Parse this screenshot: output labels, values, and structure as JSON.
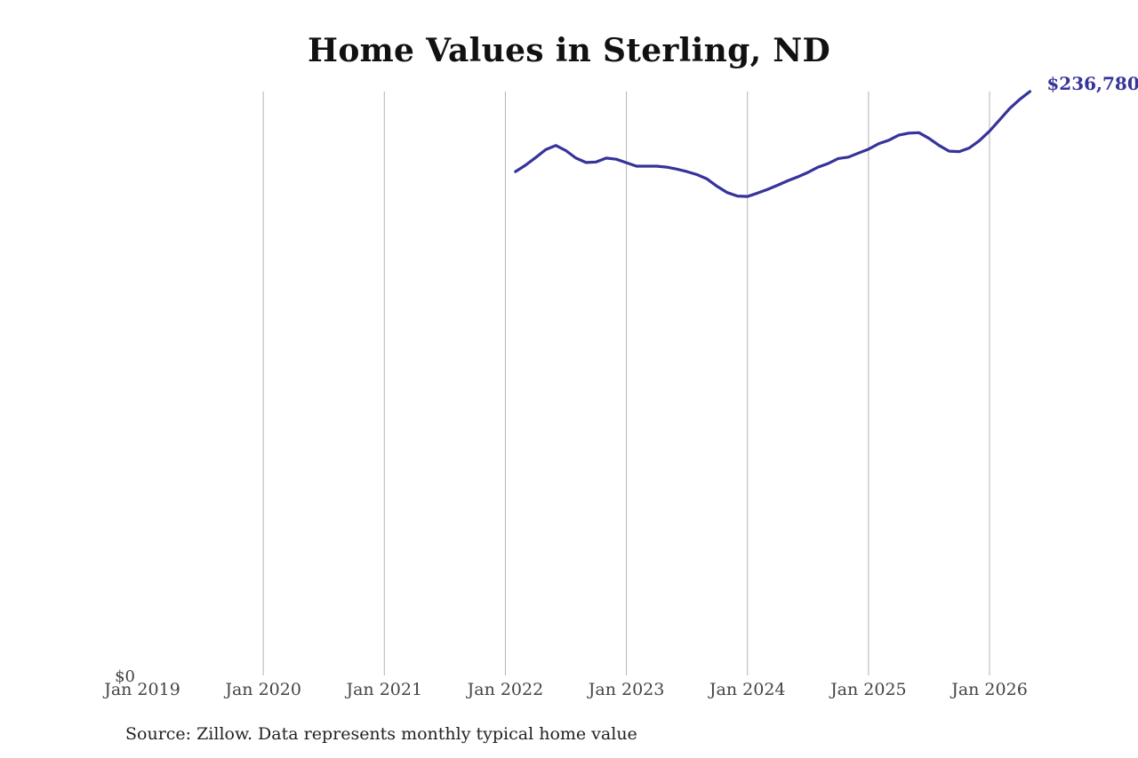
{
  "source_note": "Source: Zillow. Data represents monthly typical home value",
  "colors": {
    "line": "#36339a",
    "gridline": "#b4b4b4",
    "end_label": "#36339a"
  },
  "chart_data": {
    "type": "line",
    "title": "Home Values in Sterling, ND",
    "xlabel": "",
    "ylabel": "",
    "grid": "vertical",
    "legend": "none",
    "x_ticks": [
      {
        "date": "2019-01",
        "label": "Jan 2019"
      },
      {
        "date": "2020-01",
        "label": "Jan 2020"
      },
      {
        "date": "2021-01",
        "label": "Jan 2021"
      },
      {
        "date": "2022-01",
        "label": "Jan 2022"
      },
      {
        "date": "2023-01",
        "label": "Jan 2023"
      },
      {
        "date": "2024-01",
        "label": "Jan 2024"
      },
      {
        "date": "2025-01",
        "label": "Jan 2025"
      },
      {
        "date": "2026-01",
        "label": "Jan 2026"
      }
    ],
    "x_range": [
      "2019-01",
      "2026-01"
    ],
    "ylim": [
      0,
      236780
    ],
    "y_tick_labels": [
      "$0"
    ],
    "end_label": "$236,780",
    "series": [
      {
        "points": [
          [
            "2022-02",
            204300
          ],
          [
            "2022-03",
            206900
          ],
          [
            "2022-04",
            210000
          ],
          [
            "2022-05",
            213200
          ],
          [
            "2022-06",
            214900
          ],
          [
            "2022-07",
            212800
          ],
          [
            "2022-08",
            209800
          ],
          [
            "2022-09",
            208000
          ],
          [
            "2022-10",
            208200
          ],
          [
            "2022-11",
            209800
          ],
          [
            "2022-12",
            209300
          ],
          [
            "2023-01",
            207900
          ],
          [
            "2023-02",
            206500
          ],
          [
            "2023-03",
            206500
          ],
          [
            "2023-04",
            206500
          ],
          [
            "2023-05",
            206100
          ],
          [
            "2023-06",
            205300
          ],
          [
            "2023-07",
            204300
          ],
          [
            "2023-08",
            203100
          ],
          [
            "2023-09",
            201300
          ],
          [
            "2023-10",
            198300
          ],
          [
            "2023-11",
            195800
          ],
          [
            "2023-12",
            194400
          ],
          [
            "2024-01",
            194200
          ],
          [
            "2024-02",
            195600
          ],
          [
            "2024-03",
            197100
          ],
          [
            "2024-04",
            198800
          ],
          [
            "2024-05",
            200600
          ],
          [
            "2024-06",
            202200
          ],
          [
            "2024-07",
            204000
          ],
          [
            "2024-08",
            206100
          ],
          [
            "2024-09",
            207600
          ],
          [
            "2024-10",
            209600
          ],
          [
            "2024-11",
            210200
          ],
          [
            "2024-12",
            211800
          ],
          [
            "2025-01",
            213400
          ],
          [
            "2025-02",
            215600
          ],
          [
            "2025-03",
            217000
          ],
          [
            "2025-04",
            219100
          ],
          [
            "2025-05",
            219900
          ],
          [
            "2025-06",
            220100
          ],
          [
            "2025-07",
            217800
          ],
          [
            "2025-08",
            214900
          ],
          [
            "2025-09",
            212600
          ],
          [
            "2025-10",
            212400
          ],
          [
            "2025-11",
            213900
          ],
          [
            "2025-12",
            216900
          ],
          [
            "2026-01",
            220700
          ],
          [
            "2026-02",
            225300
          ],
          [
            "2026-03",
            229900
          ],
          [
            "2026-04",
            233600
          ],
          [
            "2026-05",
            236780
          ]
        ]
      }
    ]
  }
}
